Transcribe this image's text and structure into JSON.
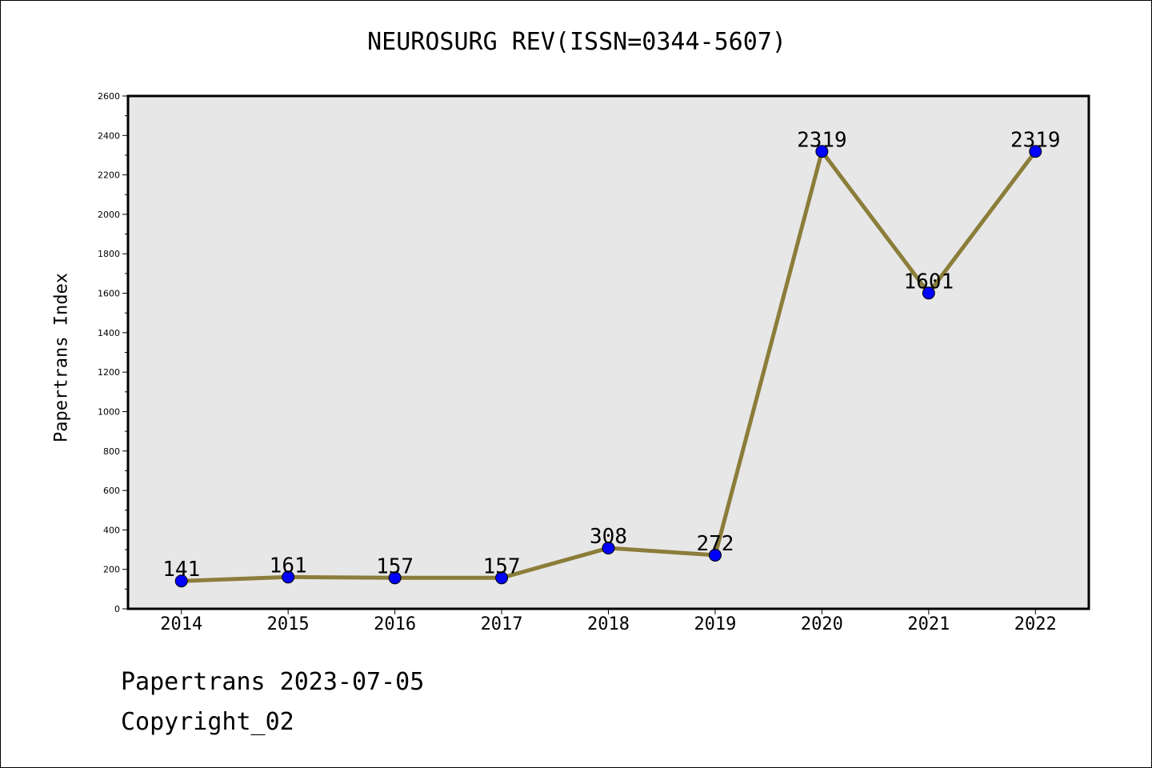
{
  "title": "NEUROSURG REV(ISSN=0344-5607)",
  "footer": {
    "date_line": "Papertrans 2023-07-05",
    "copyright_line": "Copyright_02"
  },
  "chart_data": {
    "type": "line",
    "title": "NEUROSURG REV(ISSN=0344-5607)",
    "xlabel": "",
    "ylabel": "Papertrans Index",
    "categories": [
      "2014",
      "2015",
      "2016",
      "2017",
      "2018",
      "2019",
      "2020",
      "2021",
      "2022"
    ],
    "values": [
      141,
      161,
      157,
      157,
      308,
      272,
      2319,
      1601,
      2319
    ],
    "data_labels": [
      "141",
      "161",
      "157",
      "157",
      "308",
      "272",
      "2319",
      "1601",
      "2319"
    ],
    "ylim": [
      0,
      2600
    ],
    "yticks": [
      0,
      200,
      400,
      600,
      800,
      1000,
      1200,
      1400,
      1600,
      1800,
      2000,
      2200,
      2400,
      2600
    ],
    "grid": false,
    "colors": {
      "line": "#8b7d3a",
      "marker": "#0000ff",
      "plot_background": "#e7e7e7"
    }
  }
}
